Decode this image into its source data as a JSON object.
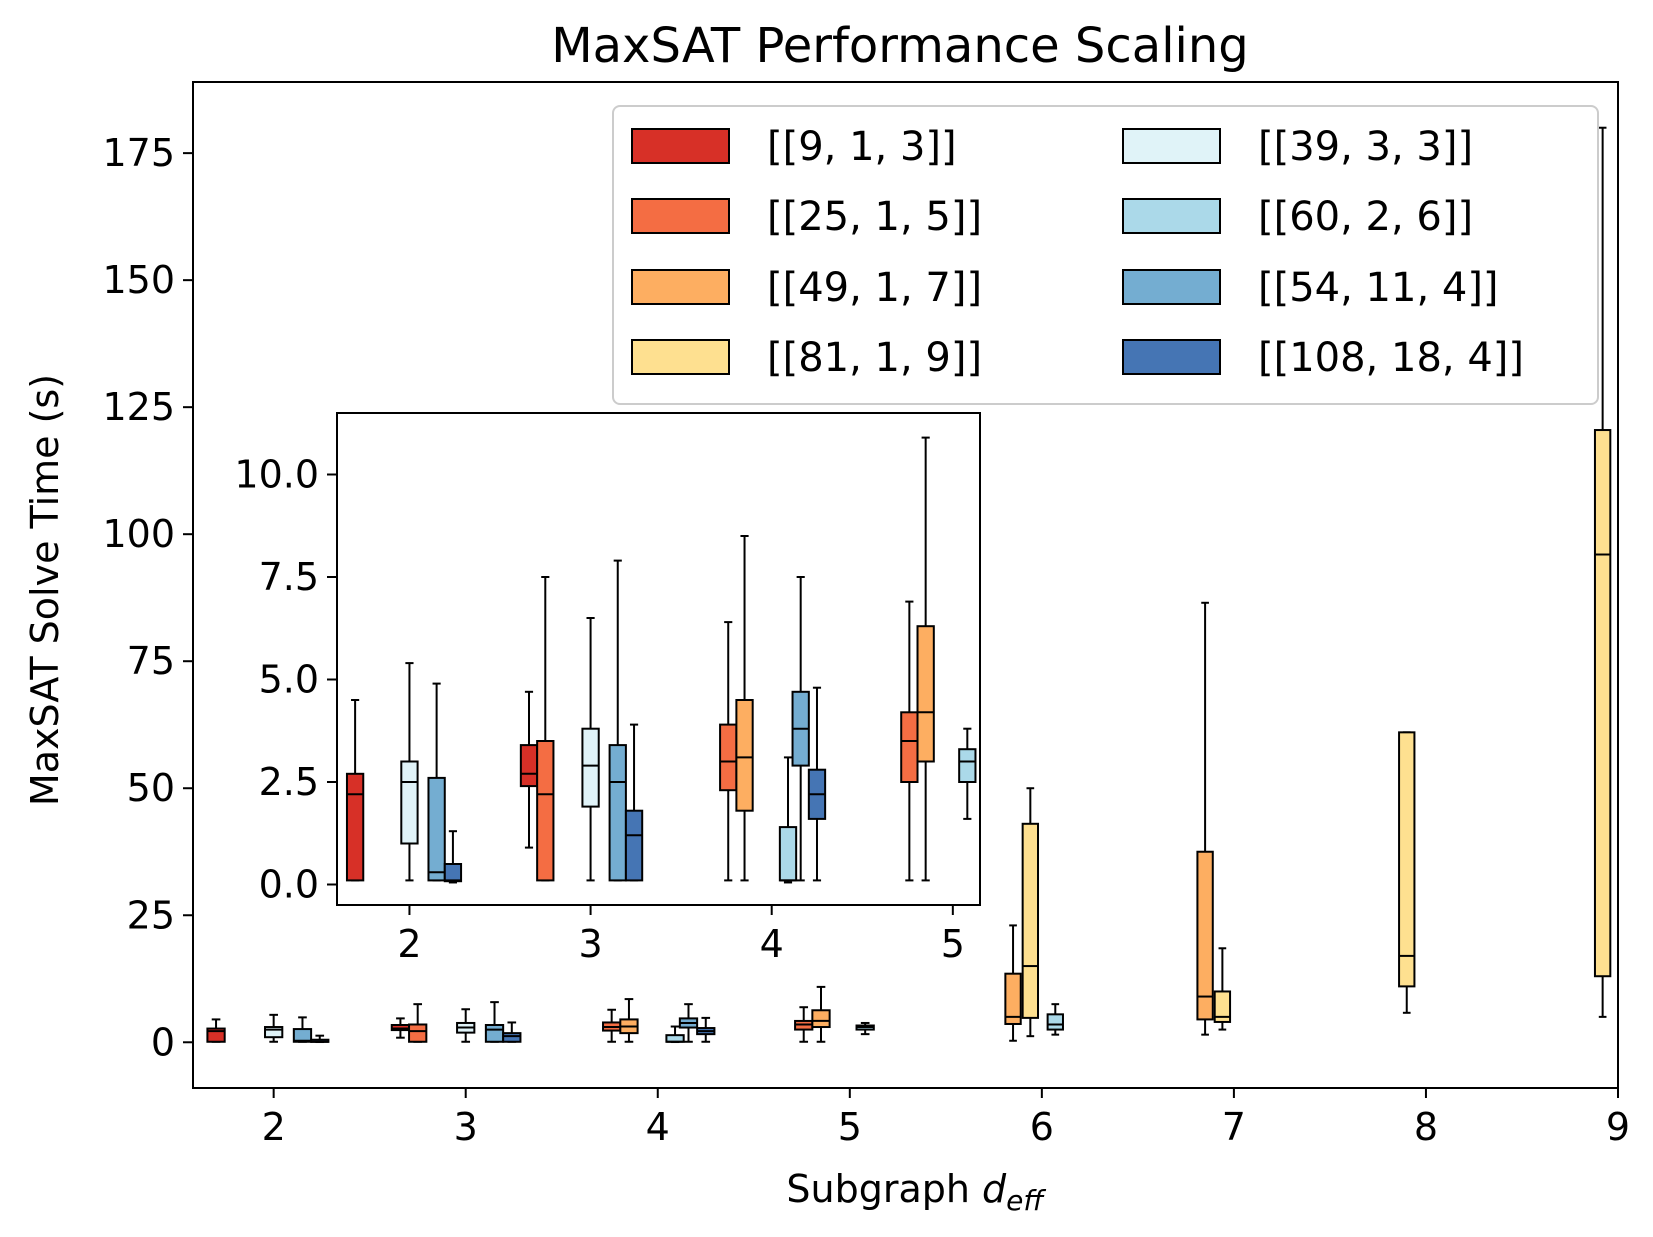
{
  "chart_data": [
    {
      "type": "box",
      "title": "MaxSAT Performance Scaling",
      "xlabel": "Subgraph ",
      "xlabel_italic": "d",
      "xlabel_sub": "eff",
      "ylabel": "MaxSAT Solve Time (s)",
      "ylim": [
        -9,
        189
      ],
      "xlim": [
        1.58,
        9.0
      ],
      "xticks": [
        2,
        3,
        4,
        5,
        6,
        7,
        8,
        9
      ],
      "yticks": [
        0,
        25,
        50,
        75,
        100,
        125,
        150,
        175
      ],
      "ytick_labels": [
        "0",
        "25",
        "50",
        "75",
        "100",
        "125",
        "150",
        "175"
      ],
      "grid": false,
      "legend_position": "top-right",
      "legend_columns": 2,
      "series": [
        {
          "name": "[[9, 1, 3]]",
          "color": "#d73027"
        },
        {
          "name": "[[25, 1, 5]]",
          "color": "#f46d43"
        },
        {
          "name": "[[49, 1, 7]]",
          "color": "#fdae61"
        },
        {
          "name": "[[81, 1, 9]]",
          "color": "#fee090"
        },
        {
          "name": "[[39, 3, 3]]",
          "color": "#e0f3f8"
        },
        {
          "name": "[[60, 2, 6]]",
          "color": "#abd9e9"
        },
        {
          "name": "[[54, 11, 4]]",
          "color": "#74add1"
        },
        {
          "name": "[[108, 18, 4]]",
          "color": "#4575b4"
        }
      ],
      "boxes": [
        {
          "series": 0,
          "x": 1.7,
          "w": 0.09,
          "wmin": 0.1,
          "q1": 0.1,
          "med": 2.2,
          "q3": 2.7,
          "wmax": 4.5
        },
        {
          "series": 4,
          "x": 2.0,
          "w": 0.09,
          "wmin": 0.1,
          "q1": 1.0,
          "med": 2.5,
          "q3": 3.0,
          "wmax": 5.4
        },
        {
          "series": 6,
          "x": 2.15,
          "w": 0.09,
          "wmin": 0.1,
          "q1": 0.1,
          "med": 0.3,
          "q3": 2.6,
          "wmax": 4.9
        },
        {
          "series": 7,
          "x": 2.24,
          "w": 0.09,
          "wmin": 0.05,
          "q1": 0.08,
          "med": 0.1,
          "q3": 0.5,
          "wmax": 1.3
        },
        {
          "series": 0,
          "x": 2.66,
          "w": 0.09,
          "wmin": 0.9,
          "q1": 2.4,
          "med": 2.7,
          "q3": 3.4,
          "wmax": 4.7
        },
        {
          "series": 1,
          "x": 2.75,
          "w": 0.09,
          "wmin": 0.1,
          "q1": 0.1,
          "med": 2.2,
          "q3": 3.5,
          "wmax": 7.5
        },
        {
          "series": 4,
          "x": 3.0,
          "w": 0.09,
          "wmin": 0.1,
          "q1": 1.9,
          "med": 2.9,
          "q3": 3.8,
          "wmax": 6.5
        },
        {
          "series": 6,
          "x": 3.15,
          "w": 0.09,
          "wmin": 0.1,
          "q1": 0.1,
          "med": 2.5,
          "q3": 3.4,
          "wmax": 7.9
        },
        {
          "series": 7,
          "x": 3.24,
          "w": 0.09,
          "wmin": 0.1,
          "q1": 0.1,
          "med": 1.2,
          "q3": 1.8,
          "wmax": 3.9
        },
        {
          "series": 1,
          "x": 3.76,
          "w": 0.09,
          "wmin": 0.1,
          "q1": 2.3,
          "med": 3.0,
          "q3": 3.9,
          "wmax": 6.4
        },
        {
          "series": 2,
          "x": 3.85,
          "w": 0.09,
          "wmin": 0.1,
          "q1": 1.8,
          "med": 3.1,
          "q3": 4.5,
          "wmax": 8.5
        },
        {
          "series": 5,
          "x": 4.09,
          "w": 0.09,
          "wmin": 0.05,
          "q1": 0.1,
          "med": 0.1,
          "q3": 1.4,
          "wmax": 3.1
        },
        {
          "series": 6,
          "x": 4.16,
          "w": 0.09,
          "wmin": 0.1,
          "q1": 2.9,
          "med": 3.8,
          "q3": 4.7,
          "wmax": 7.5
        },
        {
          "series": 7,
          "x": 4.25,
          "w": 0.09,
          "wmin": 0.1,
          "q1": 1.6,
          "med": 2.2,
          "q3": 2.8,
          "wmax": 4.8
        },
        {
          "series": 1,
          "x": 4.76,
          "w": 0.09,
          "wmin": 0.1,
          "q1": 2.5,
          "med": 3.5,
          "q3": 4.2,
          "wmax": 6.9
        },
        {
          "series": 2,
          "x": 4.85,
          "w": 0.09,
          "wmin": 0.1,
          "q1": 3.0,
          "med": 4.2,
          "q3": 6.3,
          "wmax": 10.9
        },
        {
          "series": 5,
          "x": 5.08,
          "w": 0.09,
          "wmin": 1.6,
          "q1": 2.5,
          "med": 3.0,
          "q3": 3.3,
          "wmax": 3.8
        },
        {
          "series": 2,
          "x": 5.85,
          "w": 0.08,
          "wmin": 0.3,
          "q1": 3.6,
          "med": 5.0,
          "q3": 13.5,
          "wmax": 23.0
        },
        {
          "series": 3,
          "x": 5.94,
          "w": 0.08,
          "wmin": 1.2,
          "q1": 4.8,
          "med": 15.0,
          "q3": 43.0,
          "wmax": 50.0
        },
        {
          "series": 5,
          "x": 6.07,
          "w": 0.08,
          "wmin": 1.5,
          "q1": 2.5,
          "med": 3.5,
          "q3": 5.5,
          "wmax": 7.5
        },
        {
          "series": 2,
          "x": 6.85,
          "w": 0.08,
          "wmin": 1.5,
          "q1": 4.5,
          "med": 9.0,
          "q3": 37.5,
          "wmax": 86.5
        },
        {
          "series": 3,
          "x": 6.94,
          "w": 0.08,
          "wmin": 2.5,
          "q1": 4.0,
          "med": 5.0,
          "q3": 10.0,
          "wmax": 18.5
        },
        {
          "series": 3,
          "x": 7.9,
          "w": 0.08,
          "wmin": 5.8,
          "q1": 11.0,
          "med": 17.0,
          "q3": 61.0,
          "wmax": 61.0
        },
        {
          "series": 3,
          "x": 8.92,
          "w": 0.08,
          "wmin": 5.0,
          "q1": 13.0,
          "med": 96.0,
          "q3": 120.5,
          "wmax": 180.0
        }
      ]
    },
    {
      "type": "box",
      "title": "",
      "ylim": [
        -0.5,
        11.5
      ],
      "xlim": [
        1.6,
        5.15
      ],
      "xticks": [
        2,
        3,
        4,
        5
      ],
      "yticks": [
        0.0,
        2.5,
        5.0,
        7.5,
        10.0
      ],
      "ytick_labels": [
        "0.0",
        "2.5",
        "5.0",
        "7.5",
        "10.0"
      ],
      "grid": false
    }
  ]
}
